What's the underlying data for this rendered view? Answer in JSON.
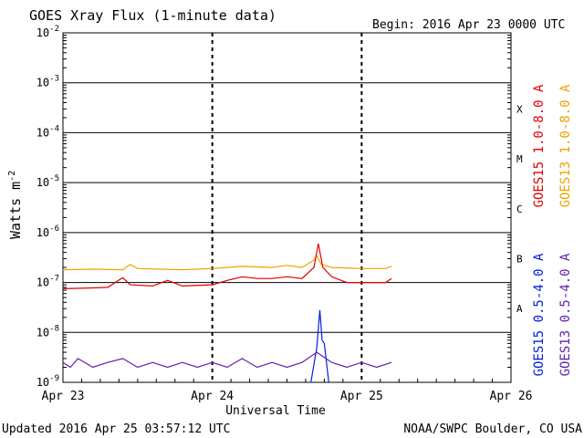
{
  "chart_data": {
    "type": "line",
    "title": "GOES Xray Flux (1-minute data)",
    "begin_label": "Begin:  2016 Apr 23 0000 UTC",
    "ylabel": "Watts m",
    "ylabel_superscript": "-2",
    "xlabel": "Universal Time",
    "y_scale": "log",
    "ylim": [
      1e-09,
      0.01
    ],
    "y_tick_labels": [
      {
        "value": 0.01,
        "base": "10",
        "exp": "-2"
      },
      {
        "value": 0.001,
        "base": "10",
        "exp": "-3"
      },
      {
        "value": 0.0001,
        "base": "10",
        "exp": "-4"
      },
      {
        "value": 1e-05,
        "base": "10",
        "exp": "-5"
      },
      {
        "value": 1e-06,
        "base": "10",
        "exp": "-6"
      },
      {
        "value": 1e-07,
        "base": "10",
        "exp": "-7"
      },
      {
        "value": 1e-08,
        "base": "10",
        "exp": "-8"
      },
      {
        "value": 1e-09,
        "base": "10",
        "exp": "-9"
      }
    ],
    "x_axis_range_days": [
      0,
      3
    ],
    "x_tick_labels": [
      {
        "day": 0,
        "label": "Apr 23"
      },
      {
        "day": 1,
        "label": "Apr 24"
      },
      {
        "day": 2,
        "label": "Apr 25"
      },
      {
        "day": 3,
        "label": "Apr 26"
      }
    ],
    "flare_classes": [
      {
        "label": "X",
        "value": 0.0003
      },
      {
        "label": "M",
        "value": 3e-05
      },
      {
        "label": "C",
        "value": 3e-06
      },
      {
        "label": "B",
        "value": 3e-07
      },
      {
        "label": "A",
        "value": 3e-08
      }
    ],
    "grid": true,
    "series": [
      {
        "name": "GOES13 1.0-8.0 A",
        "color": "#f0a000",
        "points": [
          [
            0,
            1.8e-07
          ],
          [
            0.2,
            1.85e-07
          ],
          [
            0.4,
            1.8e-07
          ],
          [
            0.45,
            2.3e-07
          ],
          [
            0.5,
            1.9e-07
          ],
          [
            0.8,
            1.8e-07
          ],
          [
            1.0,
            1.9e-07
          ],
          [
            1.2,
            2.1e-07
          ],
          [
            1.4,
            2e-07
          ],
          [
            1.5,
            2.2e-07
          ],
          [
            1.6,
            2e-07
          ],
          [
            1.68,
            2.8e-07
          ],
          [
            1.7,
            3.4e-07
          ],
          [
            1.73,
            2.3e-07
          ],
          [
            1.8,
            2e-07
          ],
          [
            2.0,
            1.9e-07
          ],
          [
            2.16,
            1.9e-07
          ],
          [
            2.2,
            2.1e-07
          ]
        ]
      },
      {
        "name": "GOES15 1.0-8.0 A",
        "color": "#e00000",
        "points": [
          [
            0,
            7.5e-08
          ],
          [
            0.2,
            7.8e-08
          ],
          [
            0.3,
            8e-08
          ],
          [
            0.4,
            1.25e-07
          ],
          [
            0.45,
            9e-08
          ],
          [
            0.6,
            8.5e-08
          ],
          [
            0.7,
            1.1e-07
          ],
          [
            0.8,
            8.5e-08
          ],
          [
            1.0,
            9e-08
          ],
          [
            1.1,
            1.1e-07
          ],
          [
            1.2,
            1.3e-07
          ],
          [
            1.3,
            1.2e-07
          ],
          [
            1.4,
            1.2e-07
          ],
          [
            1.5,
            1.3e-07
          ],
          [
            1.6,
            1.2e-07
          ],
          [
            1.68,
            2e-07
          ],
          [
            1.71,
            6e-07
          ],
          [
            1.74,
            2e-07
          ],
          [
            1.8,
            1.3e-07
          ],
          [
            1.9,
            1e-07
          ],
          [
            2.1,
            1e-07
          ],
          [
            2.16,
            1e-07
          ],
          [
            2.2,
            1.2e-07
          ]
        ]
      },
      {
        "name": "GOES15 0.5-4.0 A",
        "color": "#0020e0",
        "points": [
          [
            1.66,
            1e-09
          ],
          [
            1.7,
            5e-09
          ],
          [
            1.72,
            2.8e-08
          ],
          [
            1.735,
            7e-09
          ],
          [
            1.75,
            6e-09
          ],
          [
            1.78,
            1e-09
          ]
        ]
      },
      {
        "name": "GOES13 0.5-4.0 A",
        "color": "#6020b0",
        "points": [
          [
            0,
            2.5e-09
          ],
          [
            0.05,
            2e-09
          ],
          [
            0.1,
            3e-09
          ],
          [
            0.2,
            2e-09
          ],
          [
            0.3,
            2.5e-09
          ],
          [
            0.4,
            3e-09
          ],
          [
            0.5,
            2e-09
          ],
          [
            0.6,
            2.5e-09
          ],
          [
            0.7,
            2e-09
          ],
          [
            0.8,
            2.5e-09
          ],
          [
            0.9,
            2e-09
          ],
          [
            1.0,
            2.5e-09
          ],
          [
            1.1,
            2e-09
          ],
          [
            1.2,
            3e-09
          ],
          [
            1.3,
            2e-09
          ],
          [
            1.4,
            2.5e-09
          ],
          [
            1.5,
            2e-09
          ],
          [
            1.6,
            2.5e-09
          ],
          [
            1.7,
            4e-09
          ],
          [
            1.8,
            2.5e-09
          ],
          [
            1.9,
            2e-09
          ],
          [
            2.0,
            2.5e-09
          ],
          [
            2.1,
            2e-09
          ],
          [
            2.2,
            2.5e-09
          ]
        ]
      }
    ],
    "legend_right": [
      {
        "label": "GOES15 1.0-8.0 A",
        "color": "#e00000"
      },
      {
        "label": "GOES13 1.0-8.0 A",
        "color": "#f0a000"
      },
      {
        "label": "GOES15 0.5-4.0 A",
        "color": "#0020e0"
      },
      {
        "label": "GOES13 0.5-4.0 A",
        "color": "#6020b0"
      }
    ]
  },
  "footer": {
    "updated": "Updated 2016 Apr 25 03:57:12 UTC",
    "credit": "NOAA/SWPC Boulder, CO USA"
  }
}
